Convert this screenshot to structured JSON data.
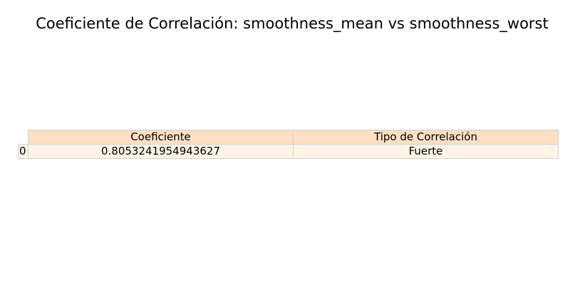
{
  "chart_data": {
    "type": "table",
    "title": "Coeficiente de Correlación: smoothness_mean vs smoothness_worst",
    "columns": [
      "Coeficiente",
      "Tipo de Correlación"
    ],
    "rows": [
      {
        "index": "0",
        "cells": [
          "0.8053241954943627",
          "Fuerte"
        ]
      }
    ],
    "colors": {
      "header_background": "#fedfc4",
      "cell_background": "#fff4e6",
      "grid_line": "#d0d0d0"
    }
  }
}
